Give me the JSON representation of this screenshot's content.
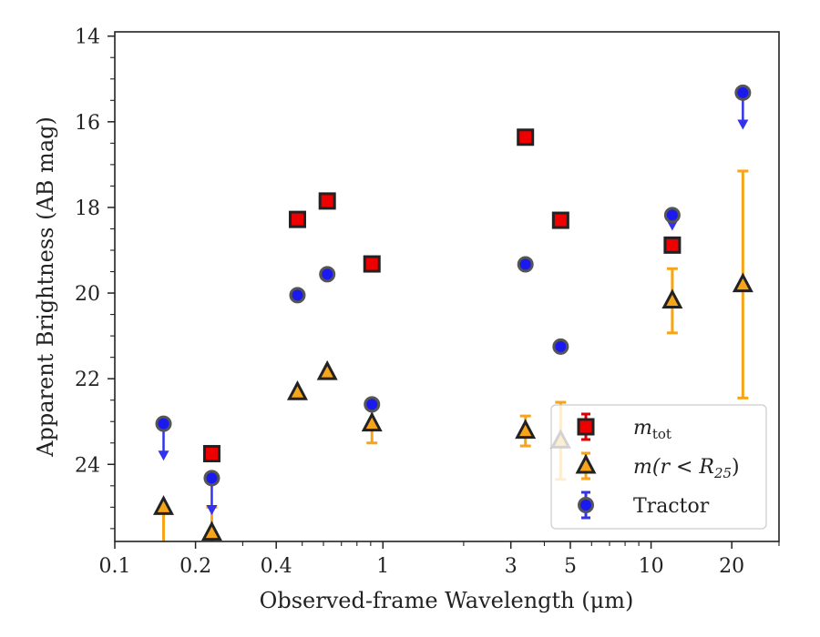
{
  "chart_data": {
    "type": "scatter",
    "xlabel": "Observed-frame Wavelength (μm)",
    "ylabel": "Apparent Brightness (AB mag)",
    "xscale": "log",
    "xlim": [
      0.1,
      30
    ],
    "ylim": [
      25.8,
      13.9
    ],
    "y_inverted": true,
    "x_ticks": [
      0.1,
      0.2,
      0.4,
      1,
      3,
      5,
      10,
      20
    ],
    "x_tick_labels": [
      "0.1",
      "0.2",
      "0.4",
      "1",
      "3",
      "5",
      "10",
      "20"
    ],
    "y_ticks": [
      14,
      16,
      18,
      20,
      22,
      24
    ],
    "y_tick_labels": [
      "14",
      "16",
      "18",
      "20",
      "22",
      "24"
    ],
    "legend_position": "lower-right",
    "series": [
      {
        "name": "m_tot",
        "legend_label": "m",
        "legend_sub": "tot",
        "marker": "square",
        "color": "#ee0000",
        "edge": "#222222",
        "err_color": "#dd0000",
        "points": [
          {
            "x": 0.23,
            "y": 23.75,
            "err": 0
          },
          {
            "x": 0.48,
            "y": 18.28,
            "err": 0
          },
          {
            "x": 0.62,
            "y": 17.85,
            "err": 0
          },
          {
            "x": 0.91,
            "y": 19.32,
            "err": 0
          },
          {
            "x": 3.4,
            "y": 16.36,
            "err": 0
          },
          {
            "x": 4.6,
            "y": 18.3,
            "err": 0
          },
          {
            "x": 12,
            "y": 18.88,
            "err": 0
          }
        ]
      },
      {
        "name": "m(r<R_25)",
        "legend_label": "m(r < R",
        "legend_sub": "25",
        "legend_tail": ")",
        "marker": "triangle",
        "color": "#f6a51a",
        "edge": "#222222",
        "err_color": "#f6a51a",
        "points": [
          {
            "x": 0.152,
            "y": 25.0,
            "err_up": 0,
            "err_down": 0.9
          },
          {
            "x": 0.23,
            "y": 25.6,
            "err_up": 0.6,
            "err_down": 0.3
          },
          {
            "x": 0.48,
            "y": 22.32,
            "err": 0
          },
          {
            "x": 0.62,
            "y": 21.85,
            "err": 0
          },
          {
            "x": 0.91,
            "y": 23.05,
            "err": 0.45
          },
          {
            "x": 3.4,
            "y": 23.22,
            "err": 0.35
          },
          {
            "x": 4.6,
            "y": 23.45,
            "err": 0.9
          },
          {
            "x": 12,
            "y": 20.18,
            "err": 0.75
          },
          {
            "x": 22,
            "y": 19.8,
            "err": 2.65
          }
        ]
      },
      {
        "name": "Tractor",
        "legend_label": "Tractor",
        "marker": "circle",
        "color": "#1a1aee",
        "edge": "#555555",
        "err_color": "#3333ee",
        "points": [
          {
            "x": 0.152,
            "y": 23.05,
            "upper_limit": 0.8
          },
          {
            "x": 0.23,
            "y": 24.32,
            "upper_limit": 0.8
          },
          {
            "x": 0.48,
            "y": 20.05,
            "err": 0
          },
          {
            "x": 0.62,
            "y": 19.56,
            "err": 0
          },
          {
            "x": 0.91,
            "y": 22.6,
            "err": 0
          },
          {
            "x": 3.4,
            "y": 19.33,
            "err": 0
          },
          {
            "x": 4.6,
            "y": 21.25,
            "err": 0
          },
          {
            "x": 12,
            "y": 18.18,
            "upper_limit": 0.3
          },
          {
            "x": 22,
            "y": 15.32,
            "upper_limit": 0.8
          }
        ]
      }
    ]
  }
}
